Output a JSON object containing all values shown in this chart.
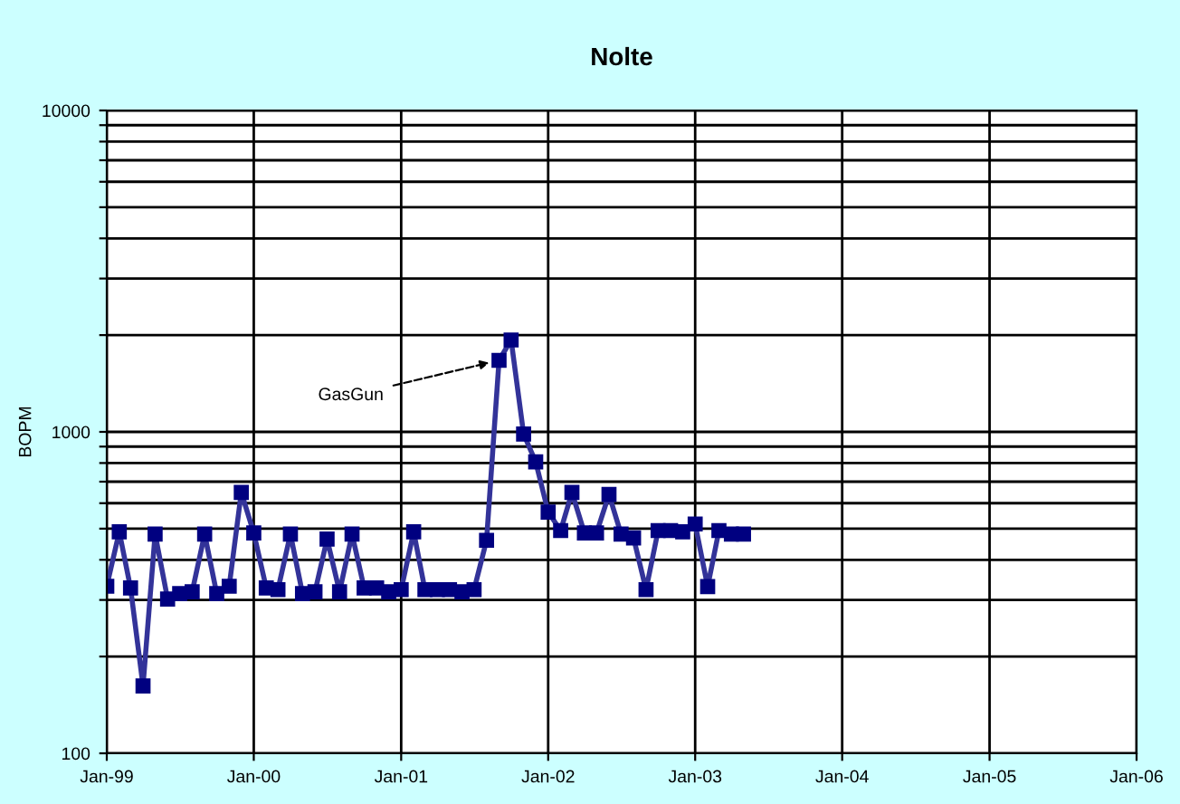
{
  "chart_data": {
    "type": "line",
    "title": "Nolte",
    "ylabel": "BOPM",
    "x": [
      "1999-01",
      "1999-02",
      "1999-03",
      "1999-04",
      "1999-05",
      "1999-06",
      "1999-07",
      "1999-08",
      "1999-09",
      "1999-10",
      "1999-11",
      "1999-12",
      "2000-01",
      "2000-02",
      "2000-03",
      "2000-04",
      "2000-05",
      "2000-06",
      "2000-07",
      "2000-08",
      "2000-09",
      "2000-10",
      "2000-11",
      "2000-12",
      "2001-01",
      "2001-02",
      "2001-03",
      "2001-04",
      "2001-05",
      "2001-06",
      "2001-07",
      "2001-08",
      "2001-09",
      "2001-10",
      "2001-11",
      "2001-12",
      "2002-01",
      "2002-02",
      "2002-03",
      "2002-04",
      "2002-05",
      "2002-06",
      "2002-07",
      "2002-08",
      "2002-09",
      "2002-10",
      "2002-11",
      "2002-12",
      "2003-01",
      "2003-02",
      "2003-03",
      "2003-04",
      "2003-05"
    ],
    "series": [
      {
        "color": "#333399",
        "values": [
          331,
          489,
          327,
          162,
          481,
          302,
          314,
          318,
          481,
          314,
          331,
          648,
          485,
          327,
          323,
          481,
          314,
          318,
          464,
          318,
          481,
          327,
          327,
          318,
          323,
          489,
          323,
          323,
          323,
          318,
          323,
          460,
          1669,
          1932,
          985,
          807,
          563,
          493,
          648,
          485,
          485,
          639,
          481,
          468,
          323,
          493,
          493,
          489,
          517,
          330,
          493,
          481,
          481
        ]
      }
    ],
    "marker": "square",
    "line_style": "solid",
    "log": "y",
    "grid": true,
    "xlim": [
      "1999-01",
      "2006-01"
    ],
    "xticks": [
      {
        "value": "1999-01",
        "label": "Jan-99"
      },
      {
        "value": "2000-01",
        "label": "Jan-00"
      },
      {
        "value": "2001-01",
        "label": "Jan-01"
      },
      {
        "value": "2002-01",
        "label": "Jan-02"
      },
      {
        "value": "2003-01",
        "label": "Jan-03"
      },
      {
        "value": "2004-01",
        "label": "Jan-04"
      },
      {
        "value": "2005-01",
        "label": "Jan-05"
      },
      {
        "value": "2006-01",
        "label": "Jan-06"
      }
    ],
    "ylim": [
      100,
      10000
    ],
    "yticks": [
      100,
      {
        "value": 200,
        "label": null
      },
      {
        "value": 300,
        "label": null
      },
      {
        "value": 400,
        "label": null
      },
      {
        "value": 500,
        "label": null
      },
      {
        "value": 600,
        "label": null
      },
      {
        "value": 700,
        "label": null
      },
      {
        "value": 800,
        "label": null
      },
      {
        "value": 900,
        "label": null
      },
      1000,
      {
        "value": 2000,
        "label": null
      },
      {
        "value": 3000,
        "label": null
      },
      {
        "value": 4000,
        "label": null
      },
      {
        "value": 5000,
        "label": null
      },
      {
        "value": 6000,
        "label": null
      },
      {
        "value": 7000,
        "label": null
      },
      {
        "value": 8000,
        "label": null
      },
      {
        "value": 9000,
        "label": null
      },
      10000
    ],
    "annotations": [
      {
        "text": "GasGun",
        "x": "2001-09",
        "y": 1669
      }
    ]
  }
}
